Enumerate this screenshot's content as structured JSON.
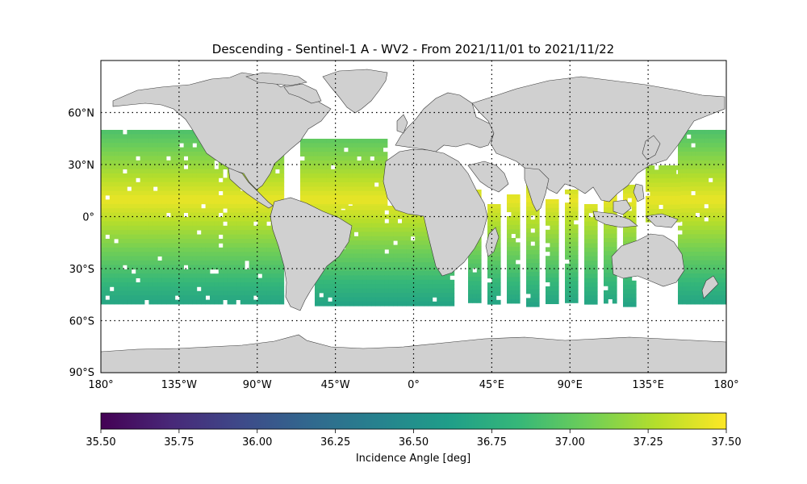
{
  "title": "Descending - Sentinel-1 A - WV2 - From 2021/11/01 to 2021/11/22",
  "map": {
    "lat_ticks": [
      {
        "value": 60,
        "label": "60°N"
      },
      {
        "value": 30,
        "label": "30°N"
      },
      {
        "value": 0,
        "label": "0°"
      },
      {
        "value": -30,
        "label": "30°S"
      },
      {
        "value": -60,
        "label": "60°S"
      },
      {
        "value": -90,
        "label": "90°S"
      }
    ],
    "lon_ticks": [
      {
        "value": -180,
        "label": "180°"
      },
      {
        "value": -135,
        "label": "135°W"
      },
      {
        "value": -90,
        "label": "90°W"
      },
      {
        "value": -45,
        "label": "45°W"
      },
      {
        "value": 0,
        "label": "0°"
      },
      {
        "value": 45,
        "label": "45°E"
      },
      {
        "value": 90,
        "label": "90°E"
      },
      {
        "value": 135,
        "label": "135°E"
      },
      {
        "value": 180,
        "label": "180°"
      }
    ],
    "lon_range": [
      -180,
      180
    ],
    "lat_range": [
      -90,
      90
    ],
    "land_color": "#d0d0d0",
    "coast_color": "#3a3a3a",
    "grid_style": "dotted"
  },
  "colorbar": {
    "label": "Incidence Angle [deg]",
    "min": 35.5,
    "max": 37.5,
    "ticks": [
      "35.50",
      "35.75",
      "36.00",
      "36.25",
      "36.50",
      "36.75",
      "37.00",
      "37.25",
      "37.50"
    ],
    "colormap": "viridis",
    "stops": [
      "#440154",
      "#482878",
      "#3e4989",
      "#31688e",
      "#26828e",
      "#1f9e89",
      "#35b779",
      "#6ece58",
      "#b5de2b",
      "#fde725"
    ]
  }
}
